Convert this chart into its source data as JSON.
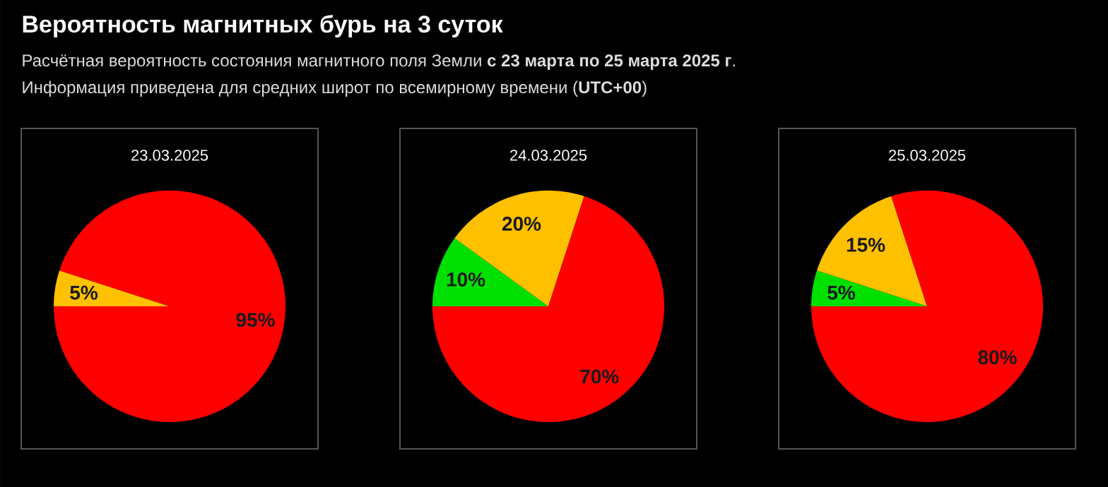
{
  "chart_data": [
    {
      "type": "other",
      "title": "Вероятность магнитных бурь на 3 суток",
      "subtitle": "Расчётная вероятность состояния магнитного поля Земли **с 23 марта по 25 марта 2025 г**.",
      "annotations": [
        "Информация приведена для средних широт по всемирному времени (**UTC+00**)"
      ]
    },
    {
      "type": "pie",
      "title": "23.03.2025",
      "categories": [
        null,
        null
      ],
      "values": [
        5,
        95
      ],
      "colors": [
        "#ffc000",
        "#ff0000"
      ],
      "value_labels": [
        "5%",
        "95%"
      ]
    },
    {
      "type": "pie",
      "title": "24.03.2025",
      "categories": [
        null,
        null,
        null
      ],
      "values": [
        10,
        20,
        70
      ],
      "colors": [
        "#00e000",
        "#ffc000",
        "#ff0000"
      ],
      "value_labels": [
        "10%",
        "20%",
        "70%"
      ]
    },
    {
      "type": "pie",
      "title": "25.03.2025",
      "categories": [
        null,
        null,
        null
      ],
      "values": [
        5,
        15,
        80
      ],
      "colors": [
        "#00e000",
        "#ffc000",
        "#ff0000"
      ],
      "value_labels": [
        "5%",
        "15%",
        "80%"
      ]
    }
  ]
}
